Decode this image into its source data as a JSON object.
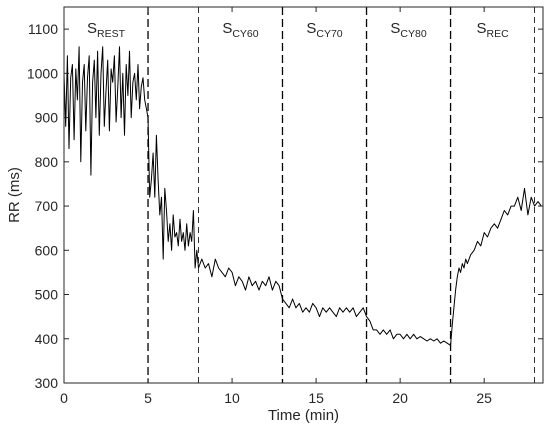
{
  "chart_data": {
    "type": "line",
    "xlabel": "Time (min)",
    "ylabel": "RR (ms)",
    "xlim": [
      0,
      28.5
    ],
    "ylim": [
      300,
      1150
    ],
    "x_ticks": [
      0,
      5,
      10,
      15,
      20,
      25
    ],
    "y_ticks": [
      300,
      400,
      500,
      600,
      700,
      800,
      900,
      1000,
      1100
    ],
    "grid": false,
    "phase_lines": [
      {
        "x": 5,
        "style": "dashed-heavy"
      },
      {
        "x": 8,
        "style": "dashed-light"
      },
      {
        "x": 13,
        "style": "dashed-heavy"
      },
      {
        "x": 18,
        "style": "dashed-heavy"
      },
      {
        "x": 23,
        "style": "dashed-heavy"
      },
      {
        "x": 28,
        "style": "dashed-light"
      }
    ],
    "phase_labels": [
      {
        "main": "S",
        "sub": "REST",
        "x": 2.5
      },
      {
        "main": "S",
        "sub": "CY60",
        "x": 10.5
      },
      {
        "main": "S",
        "sub": "CY70",
        "x": 15.5
      },
      {
        "main": "S",
        "sub": "CY80",
        "x": 20.5
      },
      {
        "main": "S",
        "sub": "REC",
        "x": 25.5
      }
    ],
    "series": [
      {
        "color": "#000000",
        "x": [
          0,
          0.1,
          0.2,
          0.3,
          0.4,
          0.5,
          0.6,
          0.7,
          0.8,
          0.9,
          1.0,
          1.1,
          1.2,
          1.3,
          1.4,
          1.5,
          1.6,
          1.7,
          1.8,
          1.9,
          2.0,
          2.1,
          2.2,
          2.3,
          2.4,
          2.5,
          2.6,
          2.7,
          2.8,
          2.9,
          3.0,
          3.1,
          3.2,
          3.3,
          3.4,
          3.5,
          3.6,
          3.7,
          3.8,
          3.9,
          4.0,
          4.1,
          4.2,
          4.3,
          4.4,
          4.5,
          4.6,
          4.7,
          4.8,
          4.9,
          5.0,
          5.1,
          5.2,
          5.3,
          5.4,
          5.5,
          5.6,
          5.7,
          5.8,
          5.9,
          6.0,
          6.1,
          6.2,
          6.3,
          6.4,
          6.5,
          6.6,
          6.7,
          6.8,
          6.9,
          7.0,
          7.1,
          7.2,
          7.3,
          7.4,
          7.5,
          7.6,
          7.7,
          7.8,
          7.9,
          8.0,
          8.2,
          8.4,
          8.6,
          8.8,
          9.0,
          9.2,
          9.4,
          9.6,
          9.8,
          10.0,
          10.2,
          10.4,
          10.6,
          10.8,
          11.0,
          11.2,
          11.4,
          11.6,
          11.8,
          12.0,
          12.2,
          12.4,
          12.6,
          12.8,
          13.0,
          13.2,
          13.4,
          13.6,
          13.8,
          14.0,
          14.2,
          14.4,
          14.6,
          14.8,
          15.0,
          15.2,
          15.4,
          15.6,
          15.8,
          16.0,
          16.2,
          16.4,
          16.6,
          16.8,
          17.0,
          17.2,
          17.4,
          17.6,
          17.8,
          18.0,
          18.2,
          18.4,
          18.6,
          18.8,
          19.0,
          19.2,
          19.4,
          19.6,
          19.8,
          20.0,
          20.2,
          20.4,
          20.6,
          20.8,
          21.0,
          21.2,
          21.4,
          21.6,
          21.8,
          22.0,
          22.2,
          22.4,
          22.6,
          22.8,
          23.0,
          23.1,
          23.2,
          23.3,
          23.4,
          23.5,
          23.6,
          23.7,
          23.8,
          23.9,
          24.0,
          24.2,
          24.4,
          24.6,
          24.8,
          25.0,
          25.2,
          25.4,
          25.6,
          25.8,
          26.0,
          26.2,
          26.4,
          26.6,
          26.8,
          27.0,
          27.2,
          27.4,
          27.6,
          27.8,
          28.0,
          28.2,
          28.4
        ],
        "y": [
          1000,
          880,
          1040,
          830,
          990,
          1020,
          850,
          1010,
          940,
          1060,
          800,
          980,
          1020,
          870,
          990,
          1040,
          770,
          980,
          1030,
          900,
          1050,
          860,
          1000,
          1060,
          880,
          960,
          1030,
          870,
          1010,
          980,
          1040,
          890,
          970,
          1060,
          900,
          1000,
          860,
          1020,
          950,
          1050,
          900,
          980,
          1000,
          940,
          1020,
          920,
          970,
          990,
          940,
          920,
          900,
          720,
          760,
          820,
          720,
          860,
          760,
          680,
          720,
          580,
          740,
          690,
          620,
          660,
          600,
          680,
          630,
          640,
          610,
          670,
          620,
          640,
          600,
          660,
          610,
          640,
          620,
          690,
          560,
          600,
          560,
          580,
          560,
          570,
          540,
          580,
          560,
          550,
          540,
          560,
          550,
          520,
          540,
          530,
          510,
          540,
          520,
          530,
          510,
          530,
          520,
          540,
          510,
          530,
          520,
          490,
          480,
          470,
          490,
          470,
          480,
          460,
          470,
          460,
          480,
          470,
          450,
          470,
          460,
          470,
          460,
          450,
          470,
          460,
          470,
          460,
          470,
          450,
          460,
          470,
          450,
          440,
          420,
          420,
          410,
          420,
          410,
          420,
          400,
          410,
          410,
          400,
          410,
          400,
          410,
          400,
          405,
          400,
          395,
          400,
          395,
          400,
          390,
          395,
          390,
          385,
          430,
          470,
          510,
          540,
          560,
          550,
          570,
          560,
          580,
          570,
          590,
          600,
          620,
          610,
          640,
          630,
          650,
          660,
          650,
          670,
          690,
          680,
          700,
          700,
          720,
          690,
          740,
          680,
          720,
          700,
          710,
          700
        ]
      }
    ]
  }
}
